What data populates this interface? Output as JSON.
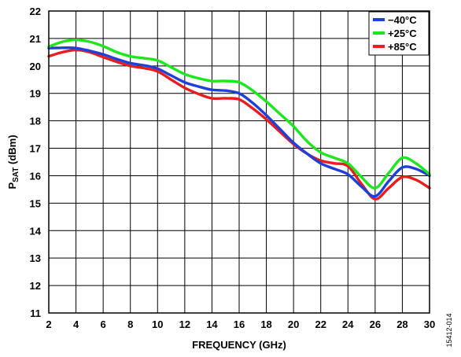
{
  "chart_data": {
    "type": "line",
    "xlabel": "FREQUENCY (GHz)",
    "ylabel": {
      "main": "P",
      "subscript": "SAT",
      "rest": " (dBm)"
    },
    "xlim": [
      2,
      30
    ],
    "ylim": [
      11,
      22
    ],
    "xticks": [
      2,
      4,
      6,
      8,
      10,
      12,
      14,
      16,
      18,
      20,
      22,
      24,
      26,
      28,
      30
    ],
    "yticks": [
      11,
      12,
      13,
      14,
      15,
      16,
      17,
      18,
      19,
      20,
      21,
      22
    ],
    "grid": true,
    "legend_position": "top-right",
    "figure_id": "15412-014",
    "series": [
      {
        "name": "−40°C",
        "color": "#1f3fd6",
        "x": [
          2,
          3,
          4,
          5,
          6,
          7,
          8,
          9,
          10,
          11,
          12,
          13,
          14,
          15,
          16,
          17,
          18,
          19,
          20,
          21,
          22,
          23,
          24,
          25,
          26,
          27,
          28,
          29,
          30
        ],
        "y": [
          20.65,
          20.66,
          20.65,
          20.55,
          20.42,
          20.25,
          20.1,
          20.02,
          19.9,
          19.65,
          19.4,
          19.25,
          19.13,
          19.1,
          19.0,
          18.65,
          18.2,
          17.7,
          17.2,
          16.8,
          16.45,
          16.25,
          16.05,
          15.6,
          15.25,
          15.8,
          16.3,
          16.25,
          16.0
        ]
      },
      {
        "name": "+25°C",
        "color": "#1ee61e",
        "x": [
          2,
          3,
          4,
          5,
          6,
          7,
          8,
          9,
          10,
          11,
          12,
          13,
          14,
          15,
          16,
          17,
          18,
          19,
          20,
          21,
          22,
          23,
          24,
          25,
          26,
          27,
          28,
          29,
          30
        ],
        "y": [
          20.7,
          20.88,
          20.95,
          20.88,
          20.72,
          20.5,
          20.35,
          20.28,
          20.2,
          19.95,
          19.7,
          19.55,
          19.45,
          19.45,
          19.4,
          19.1,
          18.7,
          18.25,
          17.8,
          17.25,
          16.85,
          16.65,
          16.45,
          15.95,
          15.55,
          16.1,
          16.65,
          16.45,
          16.05
        ]
      },
      {
        "name": "+85°C",
        "color": "#e81e1e",
        "x": [
          2,
          3,
          4,
          5,
          6,
          7,
          8,
          9,
          10,
          11,
          12,
          13,
          14,
          15,
          16,
          17,
          18,
          19,
          20,
          21,
          22,
          23,
          24,
          25,
          26,
          27,
          28,
          29,
          30
        ],
        "y": [
          20.35,
          20.5,
          20.58,
          20.5,
          20.32,
          20.15,
          20.0,
          19.92,
          19.8,
          19.5,
          19.2,
          18.98,
          18.82,
          18.82,
          18.78,
          18.45,
          18.05,
          17.6,
          17.15,
          16.8,
          16.55,
          16.45,
          16.35,
          15.7,
          15.15,
          15.55,
          15.95,
          15.85,
          15.55
        ]
      }
    ]
  }
}
